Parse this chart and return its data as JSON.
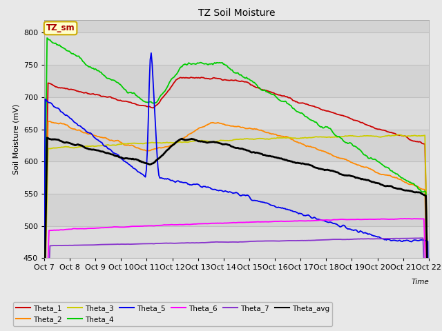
{
  "title": "TZ Soil Moisture",
  "ylabel": "Soil Moisture (mV)",
  "ylim": [
    450,
    820
  ],
  "xlim": [
    0,
    15
  ],
  "fig_bg": "#e8e8e8",
  "plot_bg": "#d3d3d3",
  "band_light": "#dcdcdc",
  "grid_color": "#c0c0c0",
  "series": {
    "Theta_1": {
      "color": "#cc0000",
      "lw": 1.3
    },
    "Theta_2": {
      "color": "#ff8800",
      "lw": 1.3
    },
    "Theta_3": {
      "color": "#cccc00",
      "lw": 1.3
    },
    "Theta_4": {
      "color": "#00cc00",
      "lw": 1.3
    },
    "Theta_5": {
      "color": "#0000ee",
      "lw": 1.3
    },
    "Theta_6": {
      "color": "#ff00ff",
      "lw": 1.3
    },
    "Theta_7": {
      "color": "#8833cc",
      "lw": 1.3
    },
    "Theta_avg": {
      "color": "#000000",
      "lw": 2.0
    }
  },
  "xtick_labels": [
    "Oct 7",
    "Oct 8",
    "Oct 9",
    "Oct 10",
    "Oct 11",
    "Oct 12",
    "Oct 13",
    "Oct 14",
    "Oct 15",
    "Oct 16",
    "Oct 17",
    "Oct 18",
    "Oct 19",
    "Oct 20",
    "Oct 21",
    "Oct 22"
  ],
  "ytick_values": [
    450,
    500,
    550,
    600,
    650,
    700,
    750,
    800
  ],
  "legend_row1": [
    {
      "color": "#cc0000",
      "label": "Theta_1"
    },
    {
      "color": "#ff8800",
      "label": "Theta_2"
    },
    {
      "color": "#cccc00",
      "label": "Theta_3"
    },
    {
      "color": "#00cc00",
      "label": "Theta_4"
    },
    {
      "color": "#0000ee",
      "label": "Theta_5"
    },
    {
      "color": "#ff00ff",
      "label": "Theta_6"
    }
  ],
  "legend_row2": [
    {
      "color": "#8833cc",
      "label": "Theta_7"
    },
    {
      "color": "#000000",
      "label": "Theta_avg"
    }
  ],
  "annotation_label": "TZ_sm",
  "annotation_color": "#aa0000",
  "annotation_bg": "#ffffcc",
  "annotation_edge": "#ccaa00"
}
